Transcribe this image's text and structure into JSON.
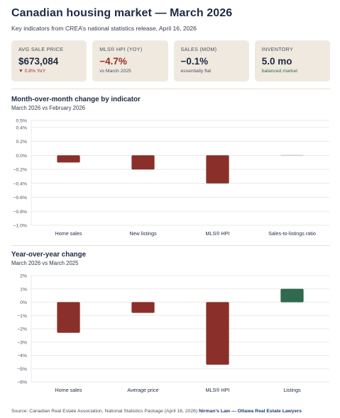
{
  "header": {
    "title": "Canadian housing market — March 2026",
    "subtitle": "Key indicators from CREA’s national statistics release, April 16, 2026"
  },
  "kpis": [
    {
      "label": "AVG SALE PRICE",
      "value": "$673,084",
      "sub": "▼ 0.8% YoY",
      "sub_color": "red",
      "value_color": "dark"
    },
    {
      "label": "MLS® HPI (YOY)",
      "value": "−4.7%",
      "sub": "vs March 2025",
      "sub_color": "gray",
      "value_color": "red"
    },
    {
      "label": "SALES (MOM)",
      "value": "−0.1%",
      "sub": "essentially flat",
      "sub_color": "gray",
      "value_color": "dark"
    },
    {
      "label": "INVENTORY",
      "value": "5.0 mo",
      "sub": "balanced market",
      "sub_color": "green",
      "value_color": "dark"
    }
  ],
  "colors": {
    "negative": "#8b2f2a",
    "positive": "#2f6a4e",
    "neutral": "#c9c4bc",
    "grid": "#e6e3de",
    "text": "#1f2a44"
  },
  "chart_data": [
    {
      "type": "bar",
      "title": "Month-over-month change by indicator",
      "subtitle": "March 2026 vs February 2026",
      "categories": [
        "Home sales",
        "New listings",
        "MLS® HPI",
        "Sales-to-listings ratio"
      ],
      "values": [
        -0.1,
        -0.2,
        -0.4,
        0.0
      ],
      "ylim": [
        -1.0,
        0.5
      ],
      "yticks": [
        0.5,
        0.4,
        0.2,
        0.0,
        -0.2,
        -0.4,
        -0.6,
        -0.8,
        -1.0
      ],
      "ytick_labels": [
        "0.5%",
        "0.4%",
        "0.2%",
        "0.0%",
        "−0.2%",
        "−0.4%",
        "−0.6%",
        "−0.8%",
        "−1.0%"
      ],
      "grid": true,
      "legend": "none"
    },
    {
      "type": "bar",
      "title": "Year-over-year change",
      "subtitle": "March 2026 vs March 2025",
      "categories": [
        "Home sales",
        "Average price",
        "MLS® HPI",
        "Listings"
      ],
      "values": [
        -2.3,
        -0.8,
        -4.7,
        1.0
      ],
      "ylim": [
        -6,
        2
      ],
      "yticks": [
        2,
        1,
        0,
        -1,
        -2,
        -3,
        -4,
        -5,
        -6
      ],
      "ytick_labels": [
        "2%",
        "1%",
        "0%",
        "−1%",
        "−2%",
        "−3%",
        "−4%",
        "−5%",
        "−6%"
      ],
      "grid": true,
      "legend": "none"
    }
  ],
  "footer": {
    "source": "Source: Canadian Real Estate Association, National Statistics Package (April 16, 2026)",
    "brand": "Nirman’s Law — Ottawa Real Estate Lawyers"
  }
}
